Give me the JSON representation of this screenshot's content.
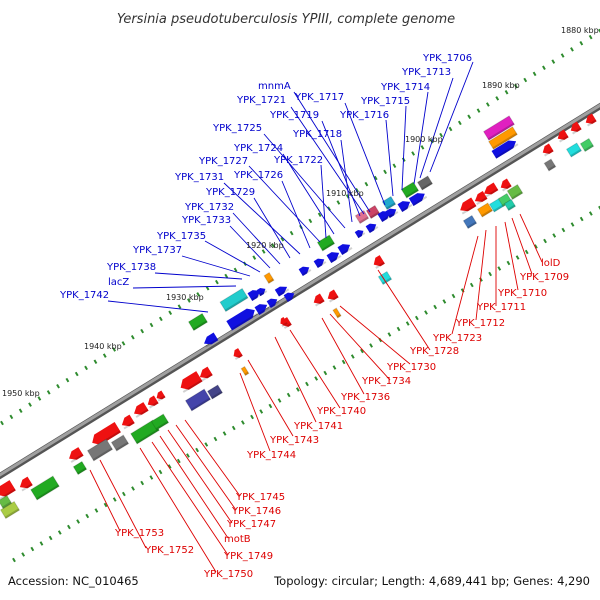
{
  "title": "Yersinia pseudotuberculosis YPIII, complete genome",
  "footer": {
    "accession": "Accession: NC_010465",
    "summary": "Topology: circular; Length: 4,689,441 bp; Genes: 4,290"
  },
  "colors": {
    "plus_strand_label": "#0000cc",
    "minus_strand_label": "#dd0000",
    "backbone": "#808080",
    "tick": "#228b22"
  },
  "ticks": [
    "1880 kbp",
    "1890 kbp",
    "1900 kbp",
    "1910 kbp",
    "1920 kbp",
    "1930 kbp",
    "1940 kbp",
    "1950 kbp"
  ],
  "plus_labels": [
    "YPK_1706",
    "YPK_1713",
    "YPK_1714",
    "YPK_1715",
    "YPK_1716",
    "YPK_1717",
    "mnmA",
    "YPK_1721",
    "YPK_1719",
    "YPK_1718",
    "YPK_1725",
    "YPK_1724",
    "YPK_1722",
    "YPK_1727",
    "YPK_1726",
    "YPK_1731",
    "YPK_1729",
    "YPK_1732",
    "YPK_1733",
    "YPK_1735",
    "YPK_1737",
    "YPK_1738",
    "lacZ",
    "YPK_1742"
  ],
  "minus_labels": [
    "lolD",
    "YPK_1709",
    "YPK_1710",
    "YPK_1711",
    "YPK_1712",
    "YPK_1723",
    "YPK_1728",
    "YPK_1730",
    "YPK_1734",
    "YPK_1736",
    "YPK_1740",
    "YPK_1741",
    "YPK_1743",
    "YPK_1744",
    "YPK_1745",
    "YPK_1746",
    "YPK_1747",
    "motB",
    "YPK_1749",
    "YPK_1750",
    "YPK_1752",
    "YPK_1753"
  ]
}
